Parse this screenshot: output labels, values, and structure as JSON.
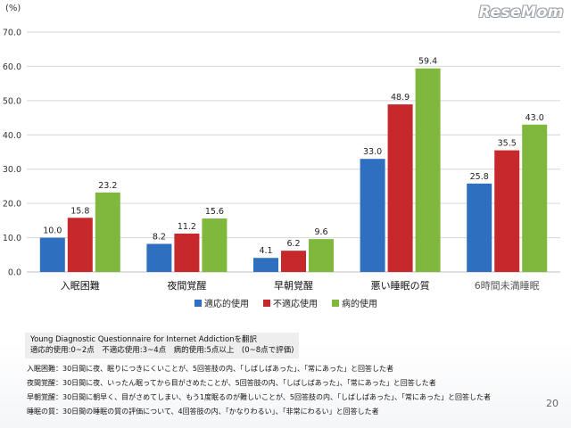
{
  "watermark": "ReseMom",
  "page_number": "20",
  "colors": {
    "series1": "#2e6fc0",
    "series2": "#c6282b",
    "series3": "#7fb83d",
    "grid": "#d6d6d6",
    "axis_text": "#333333"
  },
  "chart_data": {
    "type": "bar",
    "ylabel": "(%)",
    "ylim": [
      0,
      70
    ],
    "yticks": [
      "0.0",
      "10.0",
      "20.0",
      "30.0",
      "40.0",
      "50.0",
      "60.0",
      "70.0"
    ],
    "grid": true,
    "legend_position": "bottom",
    "categories": [
      "入眠困難",
      "夜間覚醒",
      "早朝覚醒",
      "悪い睡眠の質",
      "6時間未満睡眠"
    ],
    "series": [
      {
        "name": "適応的使用",
        "values": [
          10.0,
          8.2,
          4.1,
          33.0,
          25.8
        ],
        "labels": [
          "10.0",
          "8.2",
          "4.1",
          "33.0",
          "25.8"
        ]
      },
      {
        "name": "不適応使用",
        "values": [
          15.8,
          11.2,
          6.2,
          48.9,
          35.5
        ],
        "labels": [
          "15.8",
          "11.2",
          "6.2",
          "48.9",
          "35.5"
        ]
      },
      {
        "name": "病的使用",
        "values": [
          23.2,
          15.6,
          9.6,
          59.4,
          43.0
        ],
        "labels": [
          "23.2",
          "15.6",
          "9.6",
          "59.4",
          "43.0"
        ]
      }
    ]
  },
  "notes": {
    "box_line1": "Young Diagnostic Questionnaire for Internet Addictionを翻訳",
    "box_line2": "適応的使用:0~2点　不適応使用:3~4点　病的使用:5点以上　(0~8点で評価)",
    "def1": "入眠困難：30日間に夜、眠りにつきにくいことが、5回答肢の内、「しばしばあった」、「常にあった」と回答した者",
    "def2": "夜間覚醒：30日間に夜、いったん眠ってから目がさめたことが、5回答肢の内、「しばしばあった」、「常にあった」と回答した者",
    "def3": "早朝覚醒：30日間に朝早く、目がさめてしまい、もう1度眠るのが難しいことが、5回答肢の内、「しばしばあった」、「常にあった」と回答した者",
    "def4": "睡眠の質：30日間の睡眠の質の評価について、4回答肢の内、「かなりわるい」、「非常にわるい」と回答した者"
  }
}
